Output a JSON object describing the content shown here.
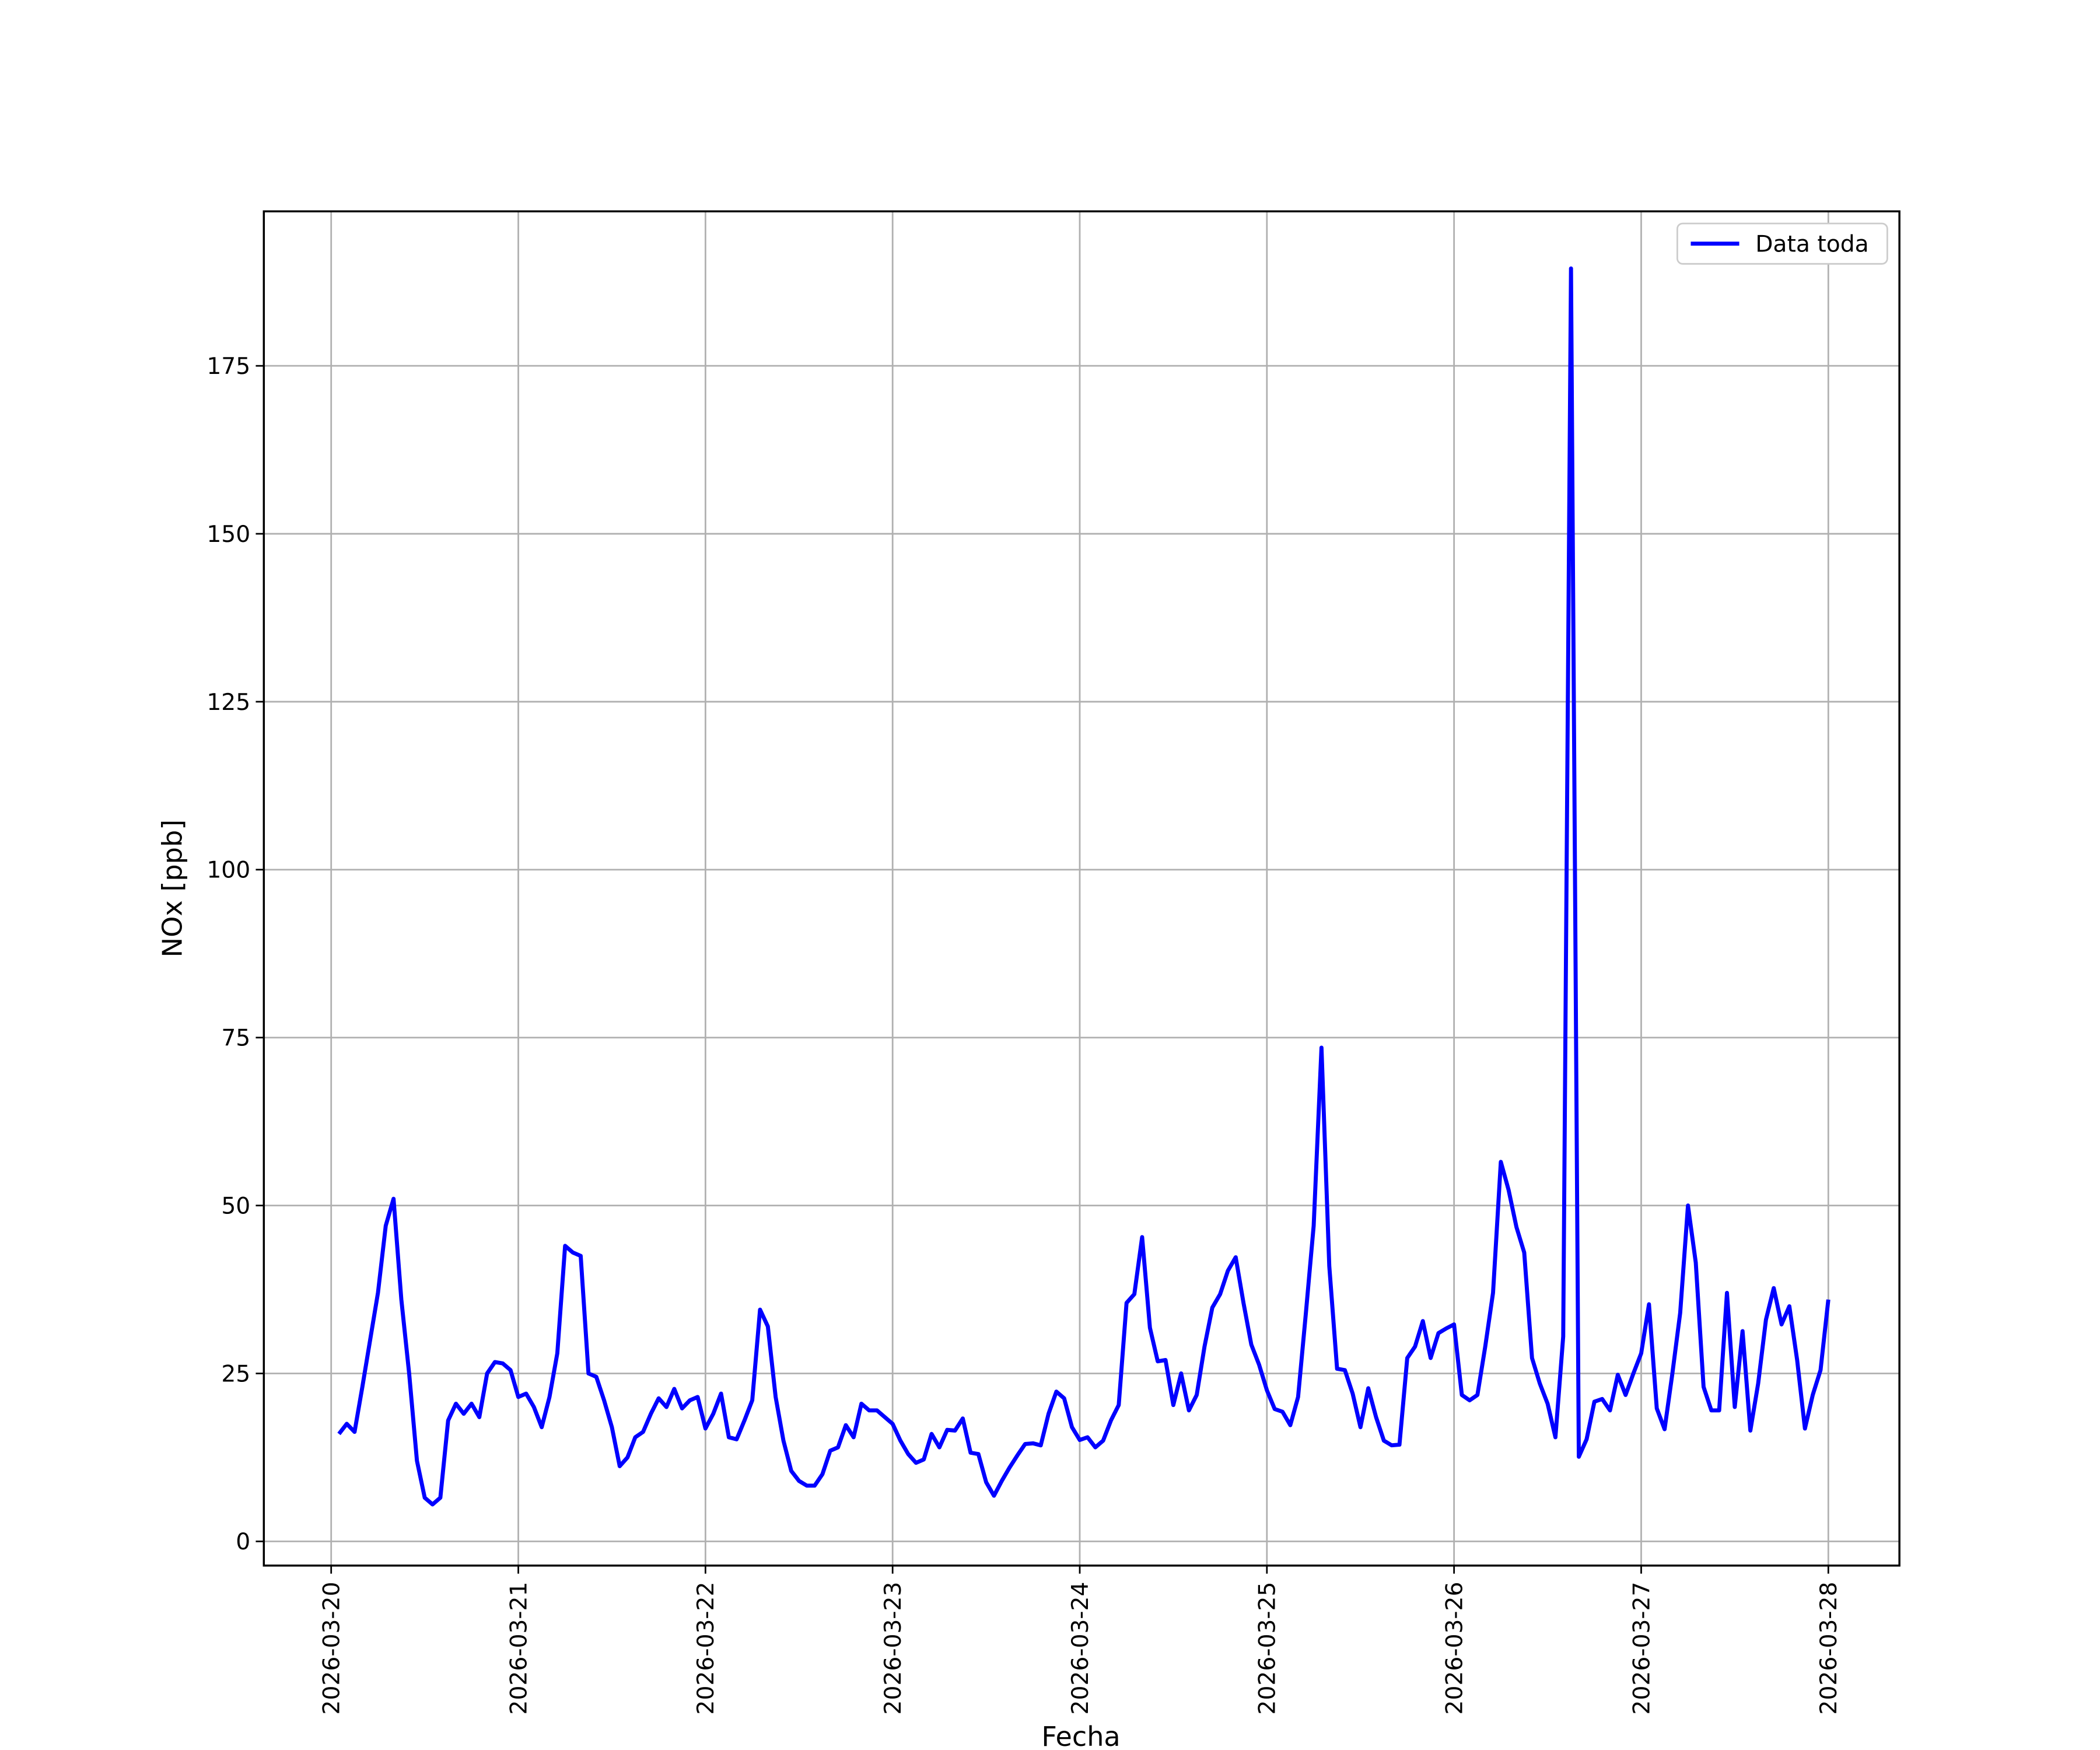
{
  "chart_data": {
    "type": "line",
    "x_label": "Fecha",
    "y_label": "NOx [ppb]",
    "legend": "upper right",
    "grid": true,
    "x": [
      "2026-03-20 01:00",
      "2026-03-20 02:00",
      "2026-03-20 03:00",
      "2026-03-20 04:00",
      "2026-03-20 05:00",
      "2026-03-20 06:00",
      "2026-03-20 07:00",
      "2026-03-20 08:00",
      "2026-03-20 09:00",
      "2026-03-20 10:00",
      "2026-03-20 11:00",
      "2026-03-20 12:00",
      "2026-03-20 13:00",
      "2026-03-20 14:00",
      "2026-03-20 15:00",
      "2026-03-20 16:00",
      "2026-03-20 17:00",
      "2026-03-20 18:00",
      "2026-03-20 19:00",
      "2026-03-20 20:00",
      "2026-03-20 21:00",
      "2026-03-20 22:00",
      "2026-03-20 23:00",
      "2026-03-21 00:00",
      "2026-03-21 01:00",
      "2026-03-21 02:00",
      "2026-03-21 03:00",
      "2026-03-21 04:00",
      "2026-03-21 05:00",
      "2026-03-21 06:00",
      "2026-03-21 07:00",
      "2026-03-21 08:00",
      "2026-03-21 09:00",
      "2026-03-21 10:00",
      "2026-03-21 11:00",
      "2026-03-21 12:00",
      "2026-03-21 13:00",
      "2026-03-21 14:00",
      "2026-03-21 15:00",
      "2026-03-21 16:00",
      "2026-03-21 17:00",
      "2026-03-21 18:00",
      "2026-03-21 19:00",
      "2026-03-21 20:00",
      "2026-03-21 21:00",
      "2026-03-21 22:00",
      "2026-03-21 23:00",
      "2026-03-22 00:00",
      "2026-03-22 01:00",
      "2026-03-22 02:00",
      "2026-03-22 03:00",
      "2026-03-22 04:00",
      "2026-03-22 05:00",
      "2026-03-22 06:00",
      "2026-03-22 07:00",
      "2026-03-22 08:00",
      "2026-03-22 09:00",
      "2026-03-22 10:00",
      "2026-03-22 11:00",
      "2026-03-22 12:00",
      "2026-03-22 13:00",
      "2026-03-22 14:00",
      "2026-03-22 15:00",
      "2026-03-22 16:00",
      "2026-03-22 17:00",
      "2026-03-22 18:00",
      "2026-03-22 19:00",
      "2026-03-22 20:00",
      "2026-03-22 21:00",
      "2026-03-22 22:00",
      "2026-03-22 23:00",
      "2026-03-23 00:00",
      "2026-03-23 01:00",
      "2026-03-23 02:00",
      "2026-03-23 03:00",
      "2026-03-23 04:00",
      "2026-03-23 05:00",
      "2026-03-23 06:00",
      "2026-03-23 07:00",
      "2026-03-23 08:00",
      "2026-03-23 09:00",
      "2026-03-23 10:00",
      "2026-03-23 11:00",
      "2026-03-23 12:00",
      "2026-03-23 13:00",
      "2026-03-23 14:00",
      "2026-03-23 15:00",
      "2026-03-23 16:00",
      "2026-03-23 17:00",
      "2026-03-23 18:00",
      "2026-03-23 19:00",
      "2026-03-23 20:00",
      "2026-03-23 21:00",
      "2026-03-23 22:00",
      "2026-03-23 23:00",
      "2026-03-24 00:00",
      "2026-03-24 01:00",
      "2026-03-24 02:00",
      "2026-03-24 03:00",
      "2026-03-24 04:00",
      "2026-03-24 05:00",
      "2026-03-24 06:00",
      "2026-03-24 07:00",
      "2026-03-24 08:00",
      "2026-03-24 09:00",
      "2026-03-24 10:00",
      "2026-03-24 11:00",
      "2026-03-24 12:00",
      "2026-03-24 13:00",
      "2026-03-24 14:00",
      "2026-03-24 15:00",
      "2026-03-24 16:00",
      "2026-03-24 17:00",
      "2026-03-24 18:00",
      "2026-03-24 19:00",
      "2026-03-24 20:00",
      "2026-03-24 21:00",
      "2026-03-24 22:00",
      "2026-03-24 23:00",
      "2026-03-25 00:00",
      "2026-03-25 01:00",
      "2026-03-25 02:00",
      "2026-03-25 03:00",
      "2026-03-25 04:00",
      "2026-03-25 05:00",
      "2026-03-25 06:00",
      "2026-03-25 07:00",
      "2026-03-25 08:00",
      "2026-03-25 09:00",
      "2026-03-25 10:00",
      "2026-03-25 11:00",
      "2026-03-25 12:00",
      "2026-03-25 13:00",
      "2026-03-25 14:00",
      "2026-03-25 15:00",
      "2026-03-25 16:00",
      "2026-03-25 17:00",
      "2026-03-25 18:00",
      "2026-03-25 19:00",
      "2026-03-25 20:00",
      "2026-03-25 21:00",
      "2026-03-25 22:00",
      "2026-03-25 23:00",
      "2026-03-26 00:00",
      "2026-03-26 01:00",
      "2026-03-26 02:00",
      "2026-03-26 03:00",
      "2026-03-26 04:00",
      "2026-03-26 05:00",
      "2026-03-26 06:00",
      "2026-03-26 07:00",
      "2026-03-26 08:00",
      "2026-03-26 09:00",
      "2026-03-26 10:00",
      "2026-03-26 11:00",
      "2026-03-26 12:00",
      "2026-03-26 13:00",
      "2026-03-26 14:00",
      "2026-03-26 15:00",
      "2026-03-26 16:00",
      "2026-03-26 17:00",
      "2026-03-26 18:00",
      "2026-03-26 19:00",
      "2026-03-26 20:00",
      "2026-03-26 21:00",
      "2026-03-26 22:00",
      "2026-03-26 23:00",
      "2026-03-27 00:00",
      "2026-03-27 01:00",
      "2026-03-27 02:00",
      "2026-03-27 03:00",
      "2026-03-27 04:00",
      "2026-03-27 05:00",
      "2026-03-27 06:00",
      "2026-03-27 07:00",
      "2026-03-27 08:00",
      "2026-03-27 09:00",
      "2026-03-27 10:00",
      "2026-03-27 11:00",
      "2026-03-27 12:00",
      "2026-03-27 13:00",
      "2026-03-27 14:00",
      "2026-03-27 15:00",
      "2026-03-27 16:00",
      "2026-03-27 17:00",
      "2026-03-27 18:00",
      "2026-03-27 19:00",
      "2026-03-27 20:00",
      "2026-03-27 21:00",
      "2026-03-27 22:00",
      "2026-03-27 23:00",
      "2026-03-28 00:00"
    ],
    "series": [
      {
        "name": "Data toda",
        "color": "#0000ff",
        "values": [
          16,
          17.5,
          16.3,
          23,
          30,
          37,
          47,
          51,
          36,
          25,
          12,
          6.5,
          5.5,
          6.5,
          18,
          20.5,
          19,
          20.5,
          18.5,
          25,
          26.7,
          26.5,
          25.5,
          21.5,
          22,
          20,
          17,
          21.5,
          28,
          44,
          43,
          42.5,
          25,
          24.5,
          21,
          17,
          11.2,
          12.5,
          15.5,
          16.3,
          19,
          21.3,
          20,
          22.7,
          19.8,
          21,
          21.5,
          16.8,
          19,
          22,
          15.5,
          15.2,
          18,
          21,
          34.5,
          32,
          21.5,
          15,
          10.5,
          9,
          8.3,
          8.3,
          10,
          13.5,
          14,
          17.3,
          15.5,
          20.5,
          19.5,
          19.5,
          18.5,
          17.5,
          15,
          13,
          11.7,
          12.2,
          16,
          14,
          16.6,
          16.5,
          18.3,
          13.2,
          13,
          8.8,
          6.8,
          9,
          11,
          12.8,
          14.5,
          14.6,
          14.3,
          19,
          22.3,
          21.3,
          17,
          15.1,
          15.5,
          14,
          15,
          18,
          20.3,
          35.5,
          36.8,
          45.3,
          31.8,
          26.8,
          27,
          20.3,
          25,
          19.5,
          21.8,
          29,
          34.8,
          36.8,
          40.3,
          42.3,
          35.5,
          29.3,
          26.3,
          22.5,
          19.7,
          19.3,
          17.3,
          21.5,
          34,
          47,
          73.5,
          41,
          25.7,
          25.5,
          22,
          17,
          22.8,
          18.5,
          15,
          14.3,
          14.4,
          27.3,
          29,
          32.8,
          27.3,
          31,
          31.7,
          32.3,
          21.8,
          21,
          21.8,
          29,
          37,
          56.5,
          52.3,
          46.8,
          43,
          27.3,
          23.5,
          20.5,
          15.5,
          30.5,
          189.5,
          12.6,
          15.2,
          20.8,
          21.2,
          19.5,
          24.8,
          21.8,
          25,
          28,
          35.3,
          19.8,
          16.7,
          25,
          34,
          50,
          41.5,
          23,
          19.5,
          19.5,
          37,
          20,
          31.3,
          16.5,
          23.5,
          33,
          37.7,
          32.3,
          35,
          27,
          16.8,
          21.8,
          25.5,
          36
        ]
      }
    ],
    "xlim": [
      "2026-03-19 15:22",
      "2026-03-28 09:07"
    ],
    "xticks": [
      "2026-03-20",
      "2026-03-21",
      "2026-03-22",
      "2026-03-23",
      "2026-03-24",
      "2026-03-25",
      "2026-03-26",
      "2026-03-27",
      "2026-03-28"
    ],
    "ylim": [
      -3.6,
      198
    ],
    "yticks": [
      0,
      25,
      50,
      75,
      100,
      125,
      150,
      175
    ]
  }
}
